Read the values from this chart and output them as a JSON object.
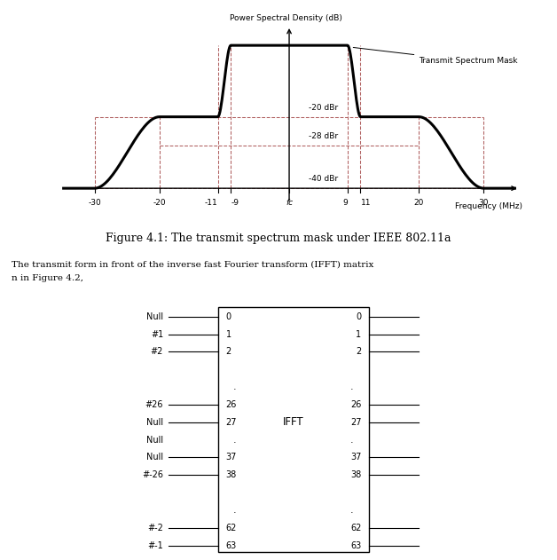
{
  "title": "Figure 4.1: The transmit spectrum mask under IEEE 802.11a",
  "ylabel": "Power Spectral Density (dB)",
  "xlabel": "Frequency (MHz)",
  "annotation_mask": "Transmit Spectrum Mask",
  "label_20dBr": "-20 dBr",
  "label_28dBr": "-28 dBr",
  "label_40dBr": "-40 dBr",
  "dashed_color": "#b06060",
  "mask_color": "#000000",
  "bg_color": "#ffffff",
  "font_color": "#000000",
  "ifft_box_rows": [
    [
      "Null",
      "0",
      "0"
    ],
    [
      "#1",
      "1",
      "1"
    ],
    [
      "#2",
      "2",
      "2"
    ],
    [
      ".",
      "",
      ""
    ],
    [
      ".",
      ".",
      "."
    ],
    [
      "#26",
      "26",
      "26"
    ],
    [
      "Null",
      "27",
      "27"
    ],
    [
      "Null",
      ".",
      "."
    ],
    [
      "Null",
      "37",
      "37"
    ],
    [
      "#-26",
      "38",
      "38"
    ],
    [
      ".",
      "",
      ""
    ],
    [
      ".",
      ".",
      "."
    ],
    [
      "#-2",
      "62",
      "62"
    ],
    [
      "#-1",
      "63",
      "63"
    ]
  ],
  "ifft_label": "IFFT",
  "text_line1": "The transmit form in front of the inverse fast Fourier transform (IFFT) matrix",
  "text_line2": "n in Figure 4.2,"
}
